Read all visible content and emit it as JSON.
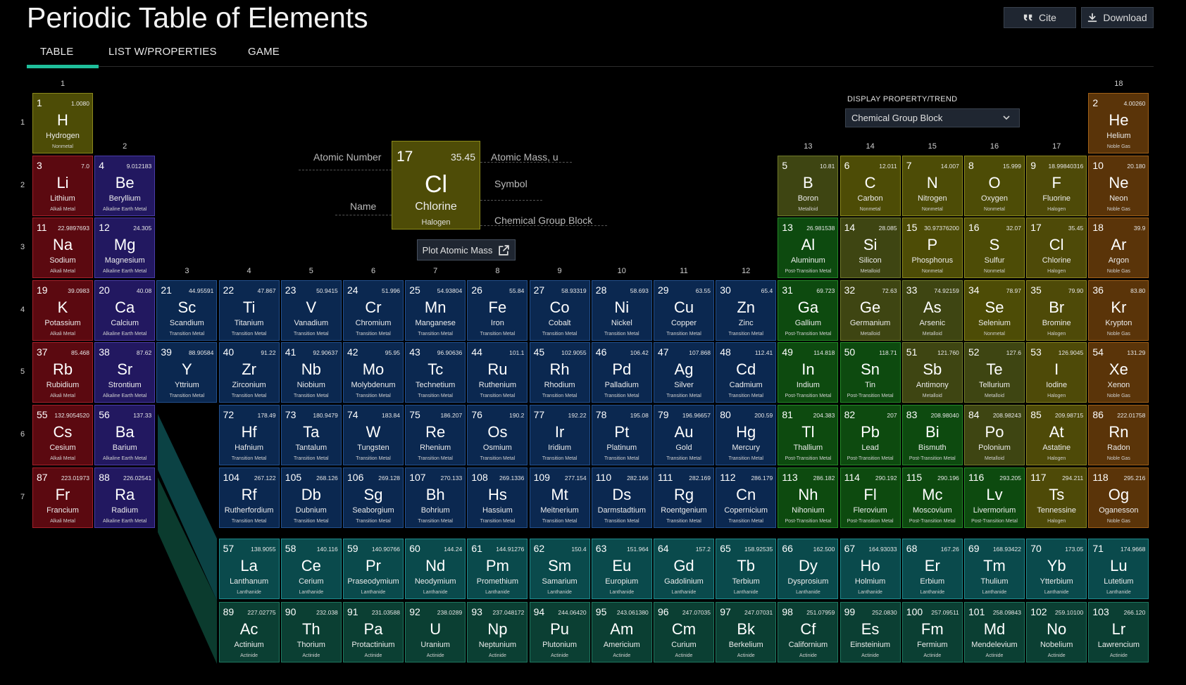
{
  "header": {
    "title": "Periodic Table of Elements",
    "cite_label": "Cite",
    "download_label": "Download"
  },
  "tabs": [
    {
      "label": "TABLE",
      "active": true
    },
    {
      "label": "LIST W/PROPERTIES",
      "active": false
    },
    {
      "label": "GAME",
      "active": false
    }
  ],
  "property": {
    "label": "DISPLAY PROPERTY/TREND",
    "selected": "Chemical Group Block"
  },
  "key": {
    "element": {
      "number": "17",
      "mass": "35.45",
      "symbol": "Cl",
      "name": "Chlorine",
      "group": "Halogen"
    },
    "labels": {
      "atomic_number": "Atomic Number",
      "atomic_mass": "Atomic Mass, u",
      "symbol": "Symbol",
      "name": "Name",
      "group_block": "Chemical Group Block"
    },
    "plot_button": "Plot Atomic Mass"
  },
  "group_labels": [
    "1",
    "2",
    "3",
    "4",
    "5",
    "6",
    "7",
    "8",
    "9",
    "10",
    "11",
    "12",
    "13",
    "14",
    "15",
    "16",
    "17",
    "18"
  ],
  "period_labels": [
    "1",
    "2",
    "3",
    "4",
    "5",
    "6",
    "7"
  ],
  "colors": {
    "Nonmetal": "#4d4c06",
    "Alkali Metal": "#5b0910",
    "Alkaline Earth Metal": "#221860",
    "Transition Metal": "#0b2850",
    "Post-Transition Metal": "#0d4a0f",
    "Metalloid": "#3e4512",
    "Halogen": "#4e4a08",
    "Noble Gas": "#5a3409",
    "Lanthanide": "#0a4a4c",
    "Actinide": "#0b3f33"
  },
  "borders": {
    "Nonmetal": "#8a881c",
    "Alkali Metal": "#a4202a",
    "Alkaline Earth Metal": "#4a3ca8",
    "Transition Metal": "#22508e",
    "Post-Transition Metal": "#248a28",
    "Metalloid": "#6f7a2a",
    "Halogen": "#8a8420",
    "Noble Gas": "#a06018",
    "Lanthanide": "#1e8a8c",
    "Actinide": "#1e7860"
  },
  "elements": [
    [
      1,
      "H",
      "Hydrogen",
      "1.0080",
      "Nonmetal",
      1,
      1
    ],
    [
      2,
      "He",
      "Helium",
      "4.00260",
      "Noble Gas",
      1,
      18
    ],
    [
      3,
      "Li",
      "Lithium",
      "7.0",
      "Alkali Metal",
      2,
      1
    ],
    [
      4,
      "Be",
      "Beryllium",
      "9.012183",
      "Alkaline Earth Metal",
      2,
      2
    ],
    [
      5,
      "B",
      "Boron",
      "10.81",
      "Metalloid",
      2,
      13
    ],
    [
      6,
      "C",
      "Carbon",
      "12.011",
      "Nonmetal",
      2,
      14
    ],
    [
      7,
      "N",
      "Nitrogen",
      "14.007",
      "Nonmetal",
      2,
      15
    ],
    [
      8,
      "O",
      "Oxygen",
      "15.999",
      "Nonmetal",
      2,
      16
    ],
    [
      9,
      "F",
      "Fluorine",
      "18.99840316",
      "Halogen",
      2,
      17
    ],
    [
      10,
      "Ne",
      "Neon",
      "20.180",
      "Noble Gas",
      2,
      18
    ],
    [
      11,
      "Na",
      "Sodium",
      "22.9897693",
      "Alkali Metal",
      3,
      1
    ],
    [
      12,
      "Mg",
      "Magnesium",
      "24.305",
      "Alkaline Earth Metal",
      3,
      2
    ],
    [
      13,
      "Al",
      "Aluminum",
      "26.981538",
      "Post-Transition Metal",
      3,
      13
    ],
    [
      14,
      "Si",
      "Silicon",
      "28.085",
      "Metalloid",
      3,
      14
    ],
    [
      15,
      "P",
      "Phosphorus",
      "30.97376200",
      "Nonmetal",
      3,
      15
    ],
    [
      16,
      "S",
      "Sulfur",
      "32.07",
      "Nonmetal",
      3,
      16
    ],
    [
      17,
      "Cl",
      "Chlorine",
      "35.45",
      "Halogen",
      3,
      17
    ],
    [
      18,
      "Ar",
      "Argon",
      "39.9",
      "Noble Gas",
      3,
      18
    ],
    [
      19,
      "K",
      "Potassium",
      "39.0983",
      "Alkali Metal",
      4,
      1
    ],
    [
      20,
      "Ca",
      "Calcium",
      "40.08",
      "Alkaline Earth Metal",
      4,
      2
    ],
    [
      21,
      "Sc",
      "Scandium",
      "44.95591",
      "Transition Metal",
      4,
      3
    ],
    [
      22,
      "Ti",
      "Titanium",
      "47.867",
      "Transition Metal",
      4,
      4
    ],
    [
      23,
      "V",
      "Vanadium",
      "50.9415",
      "Transition Metal",
      4,
      5
    ],
    [
      24,
      "Cr",
      "Chromium",
      "51.996",
      "Transition Metal",
      4,
      6
    ],
    [
      25,
      "Mn",
      "Manganese",
      "54.93804",
      "Transition Metal",
      4,
      7
    ],
    [
      26,
      "Fe",
      "Iron",
      "55.84",
      "Transition Metal",
      4,
      8
    ],
    [
      27,
      "Co",
      "Cobalt",
      "58.93319",
      "Transition Metal",
      4,
      9
    ],
    [
      28,
      "Ni",
      "Nickel",
      "58.693",
      "Transition Metal",
      4,
      10
    ],
    [
      29,
      "Cu",
      "Copper",
      "63.55",
      "Transition Metal",
      4,
      11
    ],
    [
      30,
      "Zn",
      "Zinc",
      "65.4",
      "Transition Metal",
      4,
      12
    ],
    [
      31,
      "Ga",
      "Gallium",
      "69.723",
      "Post-Transition Metal",
      4,
      13
    ],
    [
      32,
      "Ge",
      "Germanium",
      "72.63",
      "Metalloid",
      4,
      14
    ],
    [
      33,
      "As",
      "Arsenic",
      "74.92159",
      "Metalloid",
      4,
      15
    ],
    [
      34,
      "Se",
      "Selenium",
      "78.97",
      "Nonmetal",
      4,
      16
    ],
    [
      35,
      "Br",
      "Bromine",
      "79.90",
      "Halogen",
      4,
      17
    ],
    [
      36,
      "Kr",
      "Krypton",
      "83.80",
      "Noble Gas",
      4,
      18
    ],
    [
      37,
      "Rb",
      "Rubidium",
      "85.468",
      "Alkali Metal",
      5,
      1
    ],
    [
      38,
      "Sr",
      "Strontium",
      "87.62",
      "Alkaline Earth Metal",
      5,
      2
    ],
    [
      39,
      "Y",
      "Yttrium",
      "88.90584",
      "Transition Metal",
      5,
      3
    ],
    [
      40,
      "Zr",
      "Zirconium",
      "91.22",
      "Transition Metal",
      5,
      4
    ],
    [
      41,
      "Nb",
      "Niobium",
      "92.90637",
      "Transition Metal",
      5,
      5
    ],
    [
      42,
      "Mo",
      "Molybdenum",
      "95.95",
      "Transition Metal",
      5,
      6
    ],
    [
      43,
      "Tc",
      "Technetium",
      "96.90636",
      "Transition Metal",
      5,
      7
    ],
    [
      44,
      "Ru",
      "Ruthenium",
      "101.1",
      "Transition Metal",
      5,
      8
    ],
    [
      45,
      "Rh",
      "Rhodium",
      "102.9055",
      "Transition Metal",
      5,
      9
    ],
    [
      46,
      "Pd",
      "Palladium",
      "106.42",
      "Transition Metal",
      5,
      10
    ],
    [
      47,
      "Ag",
      "Silver",
      "107.868",
      "Transition Metal",
      5,
      11
    ],
    [
      48,
      "Cd",
      "Cadmium",
      "112.41",
      "Transition Metal",
      5,
      12
    ],
    [
      49,
      "In",
      "Indium",
      "114.818",
      "Post-Transition Metal",
      5,
      13
    ],
    [
      50,
      "Sn",
      "Tin",
      "118.71",
      "Post-Transition Metal",
      5,
      14
    ],
    [
      51,
      "Sb",
      "Antimony",
      "121.760",
      "Metalloid",
      5,
      15
    ],
    [
      52,
      "Te",
      "Tellurium",
      "127.6",
      "Metalloid",
      5,
      16
    ],
    [
      53,
      "I",
      "Iodine",
      "126.9045",
      "Halogen",
      5,
      17
    ],
    [
      54,
      "Xe",
      "Xenon",
      "131.29",
      "Noble Gas",
      5,
      18
    ],
    [
      55,
      "Cs",
      "Cesium",
      "132.9054520",
      "Alkali Metal",
      6,
      1
    ],
    [
      56,
      "Ba",
      "Barium",
      "137.33",
      "Alkaline Earth Metal",
      6,
      2
    ],
    [
      72,
      "Hf",
      "Hafnium",
      "178.49",
      "Transition Metal",
      6,
      4
    ],
    [
      73,
      "Ta",
      "Tantalum",
      "180.9479",
      "Transition Metal",
      6,
      5
    ],
    [
      74,
      "W",
      "Tungsten",
      "183.84",
      "Transition Metal",
      6,
      6
    ],
    [
      75,
      "Re",
      "Rhenium",
      "186.207",
      "Transition Metal",
      6,
      7
    ],
    [
      76,
      "Os",
      "Osmium",
      "190.2",
      "Transition Metal",
      6,
      8
    ],
    [
      77,
      "Ir",
      "Iridium",
      "192.22",
      "Transition Metal",
      6,
      9
    ],
    [
      78,
      "Pt",
      "Platinum",
      "195.08",
      "Transition Metal",
      6,
      10
    ],
    [
      79,
      "Au",
      "Gold",
      "196.96657",
      "Transition Metal",
      6,
      11
    ],
    [
      80,
      "Hg",
      "Mercury",
      "200.59",
      "Transition Metal",
      6,
      12
    ],
    [
      81,
      "Tl",
      "Thallium",
      "204.383",
      "Post-Transition Metal",
      6,
      13
    ],
    [
      82,
      "Pb",
      "Lead",
      "207",
      "Post-Transition Metal",
      6,
      14
    ],
    [
      83,
      "Bi",
      "Bismuth",
      "208.98040",
      "Post-Transition Metal",
      6,
      15
    ],
    [
      84,
      "Po",
      "Polonium",
      "208.98243",
      "Metalloid",
      6,
      16
    ],
    [
      85,
      "At",
      "Astatine",
      "209.98715",
      "Halogen",
      6,
      17
    ],
    [
      86,
      "Rn",
      "Radon",
      "222.01758",
      "Noble Gas",
      6,
      18
    ],
    [
      87,
      "Fr",
      "Francium",
      "223.01973",
      "Alkali Metal",
      7,
      1
    ],
    [
      88,
      "Ra",
      "Radium",
      "226.02541",
      "Alkaline Earth Metal",
      7,
      2
    ],
    [
      104,
      "Rf",
      "Rutherfordium",
      "267.122",
      "Transition Metal",
      7,
      4
    ],
    [
      105,
      "Db",
      "Dubnium",
      "268.126",
      "Transition Metal",
      7,
      5
    ],
    [
      106,
      "Sg",
      "Seaborgium",
      "269.128",
      "Transition Metal",
      7,
      6
    ],
    [
      107,
      "Bh",
      "Bohrium",
      "270.133",
      "Transition Metal",
      7,
      7
    ],
    [
      108,
      "Hs",
      "Hassium",
      "269.1336",
      "Transition Metal",
      7,
      8
    ],
    [
      109,
      "Mt",
      "Meitnerium",
      "277.154",
      "Transition Metal",
      7,
      9
    ],
    [
      110,
      "Ds",
      "Darmstadtium",
      "282.166",
      "Transition Metal",
      7,
      10
    ],
    [
      111,
      "Rg",
      "Roentgenium",
      "282.169",
      "Transition Metal",
      7,
      11
    ],
    [
      112,
      "Cn",
      "Copernicium",
      "286.179",
      "Transition Metal",
      7,
      12
    ],
    [
      113,
      "Nh",
      "Nihonium",
      "286.182",
      "Post-Transition Metal",
      7,
      13
    ],
    [
      114,
      "Fl",
      "Flerovium",
      "290.192",
      "Post-Transition Metal",
      7,
      14
    ],
    [
      115,
      "Mc",
      "Moscovium",
      "290.196",
      "Post-Transition Metal",
      7,
      15
    ],
    [
      116,
      "Lv",
      "Livermorium",
      "293.205",
      "Post-Transition Metal",
      7,
      16
    ],
    [
      117,
      "Ts",
      "Tennessine",
      "294.211",
      "Halogen",
      7,
      17
    ],
    [
      118,
      "Og",
      "Oganesson",
      "295.216",
      "Noble Gas",
      7,
      18
    ],
    [
      57,
      "La",
      "Lanthanum",
      "138.9055",
      "Lanthanide",
      8,
      4
    ],
    [
      58,
      "Ce",
      "Cerium",
      "140.116",
      "Lanthanide",
      8,
      5
    ],
    [
      59,
      "Pr",
      "Praseodymium",
      "140.90766",
      "Lanthanide",
      8,
      6
    ],
    [
      60,
      "Nd",
      "Neodymium",
      "144.24",
      "Lanthanide",
      8,
      7
    ],
    [
      61,
      "Pm",
      "Promethium",
      "144.91276",
      "Lanthanide",
      8,
      8
    ],
    [
      62,
      "Sm",
      "Samarium",
      "150.4",
      "Lanthanide",
      8,
      9
    ],
    [
      63,
      "Eu",
      "Europium",
      "151.964",
      "Lanthanide",
      8,
      10
    ],
    [
      64,
      "Gd",
      "Gadolinium",
      "157.2",
      "Lanthanide",
      8,
      11
    ],
    [
      65,
      "Tb",
      "Terbium",
      "158.92535",
      "Lanthanide",
      8,
      12
    ],
    [
      66,
      "Dy",
      "Dysprosium",
      "162.500",
      "Lanthanide",
      8,
      13
    ],
    [
      67,
      "Ho",
      "Holmium",
      "164.93033",
      "Lanthanide",
      8,
      14
    ],
    [
      68,
      "Er",
      "Erbium",
      "167.26",
      "Lanthanide",
      8,
      15
    ],
    [
      69,
      "Tm",
      "Thulium",
      "168.93422",
      "Lanthanide",
      8,
      16
    ],
    [
      70,
      "Yb",
      "Ytterbium",
      "173.05",
      "Lanthanide",
      8,
      17
    ],
    [
      71,
      "Lu",
      "Lutetium",
      "174.9668",
      "Lanthanide",
      8,
      18
    ],
    [
      89,
      "Ac",
      "Actinium",
      "227.02775",
      "Actinide",
      9,
      4
    ],
    [
      90,
      "Th",
      "Thorium",
      "232.038",
      "Actinide",
      9,
      5
    ],
    [
      91,
      "Pa",
      "Protactinium",
      "231.03588",
      "Actinide",
      9,
      6
    ],
    [
      92,
      "U",
      "Uranium",
      "238.0289",
      "Actinide",
      9,
      7
    ],
    [
      93,
      "Np",
      "Neptunium",
      "237.048172",
      "Actinide",
      9,
      8
    ],
    [
      94,
      "Pu",
      "Plutonium",
      "244.06420",
      "Actinide",
      9,
      9
    ],
    [
      95,
      "Am",
      "Americium",
      "243.061380",
      "Actinide",
      9,
      10
    ],
    [
      96,
      "Cm",
      "Curium",
      "247.07035",
      "Actinide",
      9,
      11
    ],
    [
      97,
      "Bk",
      "Berkelium",
      "247.07031",
      "Actinide",
      9,
      12
    ],
    [
      98,
      "Cf",
      "Californium",
      "251.07959",
      "Actinide",
      9,
      13
    ],
    [
      99,
      "Es",
      "Einsteinium",
      "252.0830",
      "Actinide",
      9,
      14
    ],
    [
      100,
      "Fm",
      "Fermium",
      "257.09511",
      "Actinide",
      9,
      15
    ],
    [
      101,
      "Md",
      "Mendelevium",
      "258.09843",
      "Actinide",
      9,
      16
    ],
    [
      102,
      "No",
      "Nobelium",
      "259.10100",
      "Actinide",
      9,
      17
    ],
    [
      103,
      "Lr",
      "Lawrencium",
      "266.120",
      "Actinide",
      9,
      18
    ]
  ]
}
